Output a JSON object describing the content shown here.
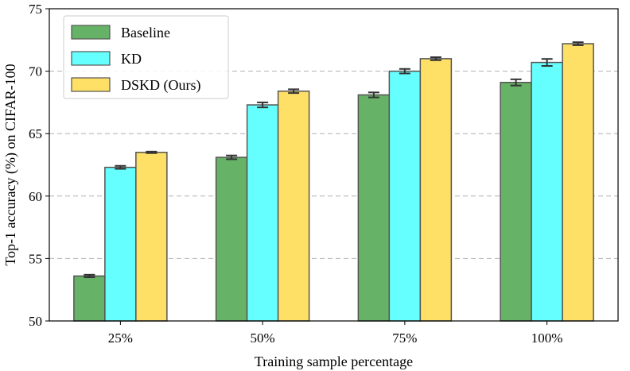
{
  "chart_data": {
    "type": "bar",
    "title": "",
    "xlabel": "Training sample percentage",
    "ylabel": "Top-1 accuracy (%) on CIFAR-100",
    "categories": [
      "25%",
      "50%",
      "75%",
      "100%"
    ],
    "ylim": [
      50,
      75
    ],
    "yticks": [
      50,
      55,
      60,
      65,
      70,
      75
    ],
    "grid": true,
    "legend_position": "top-left",
    "series": [
      {
        "name": "Baseline",
        "color": "#66b266",
        "values": [
          53.6,
          63.1,
          68.1,
          69.1
        ],
        "errors": [
          0.1,
          0.15,
          0.2,
          0.25
        ]
      },
      {
        "name": "KD",
        "color": "#66ffff",
        "values": [
          62.3,
          67.3,
          70.0,
          70.7
        ],
        "errors": [
          0.12,
          0.2,
          0.18,
          0.28
        ]
      },
      {
        "name": "DSKD (Ours)",
        "color": "#ffe066",
        "values": [
          63.5,
          68.4,
          71.0,
          72.2
        ],
        "errors": [
          0.06,
          0.15,
          0.12,
          0.12
        ]
      }
    ]
  }
}
